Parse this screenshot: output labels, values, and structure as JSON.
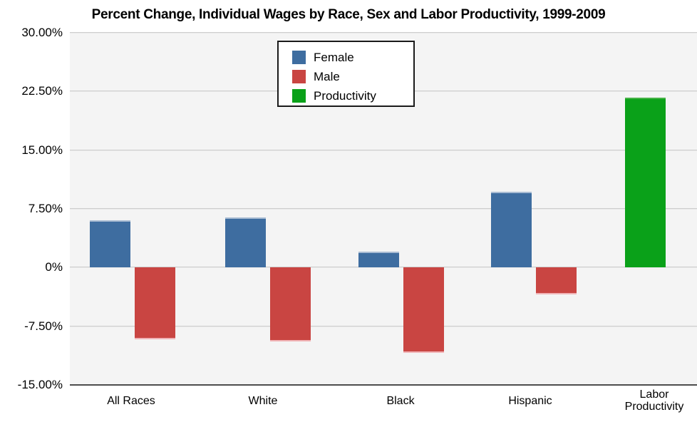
{
  "chart_data": {
    "type": "bar",
    "title": "Percent Change, Individual Wages by Race, Sex and Labor Productivity, 1999-2009",
    "categories": [
      "All Races",
      "White",
      "Black",
      "Hispanic",
      "Labor Productivity"
    ],
    "series": [
      {
        "name": "Female",
        "color": "#3e6da0",
        "cap_color": "#a9bcd3",
        "values": [
          6.0,
          6.4,
          2.0,
          9.7,
          null
        ]
      },
      {
        "name": "Male",
        "color": "#c94542",
        "cap_color": "#f0b3b6",
        "values": [
          -9.2,
          -9.4,
          -10.9,
          -3.4,
          null
        ]
      },
      {
        "name": "Productivity",
        "color": "#0aa119",
        "cap_color": "#45b245",
        "values": [
          null,
          null,
          null,
          null,
          21.7
        ]
      }
    ],
    "y_ticks": [
      "30.00%",
      "22.50%",
      "15.00%",
      "7.50%",
      "0%",
      "-7.50%",
      "-15.00%"
    ],
    "ylim": [
      -15,
      30
    ],
    "grid": true,
    "legend_position": "top-center",
    "plot_bg": "#f4f4f4",
    "grid_color": "#cdcdcd",
    "axis_color": "#4d4d4d"
  }
}
